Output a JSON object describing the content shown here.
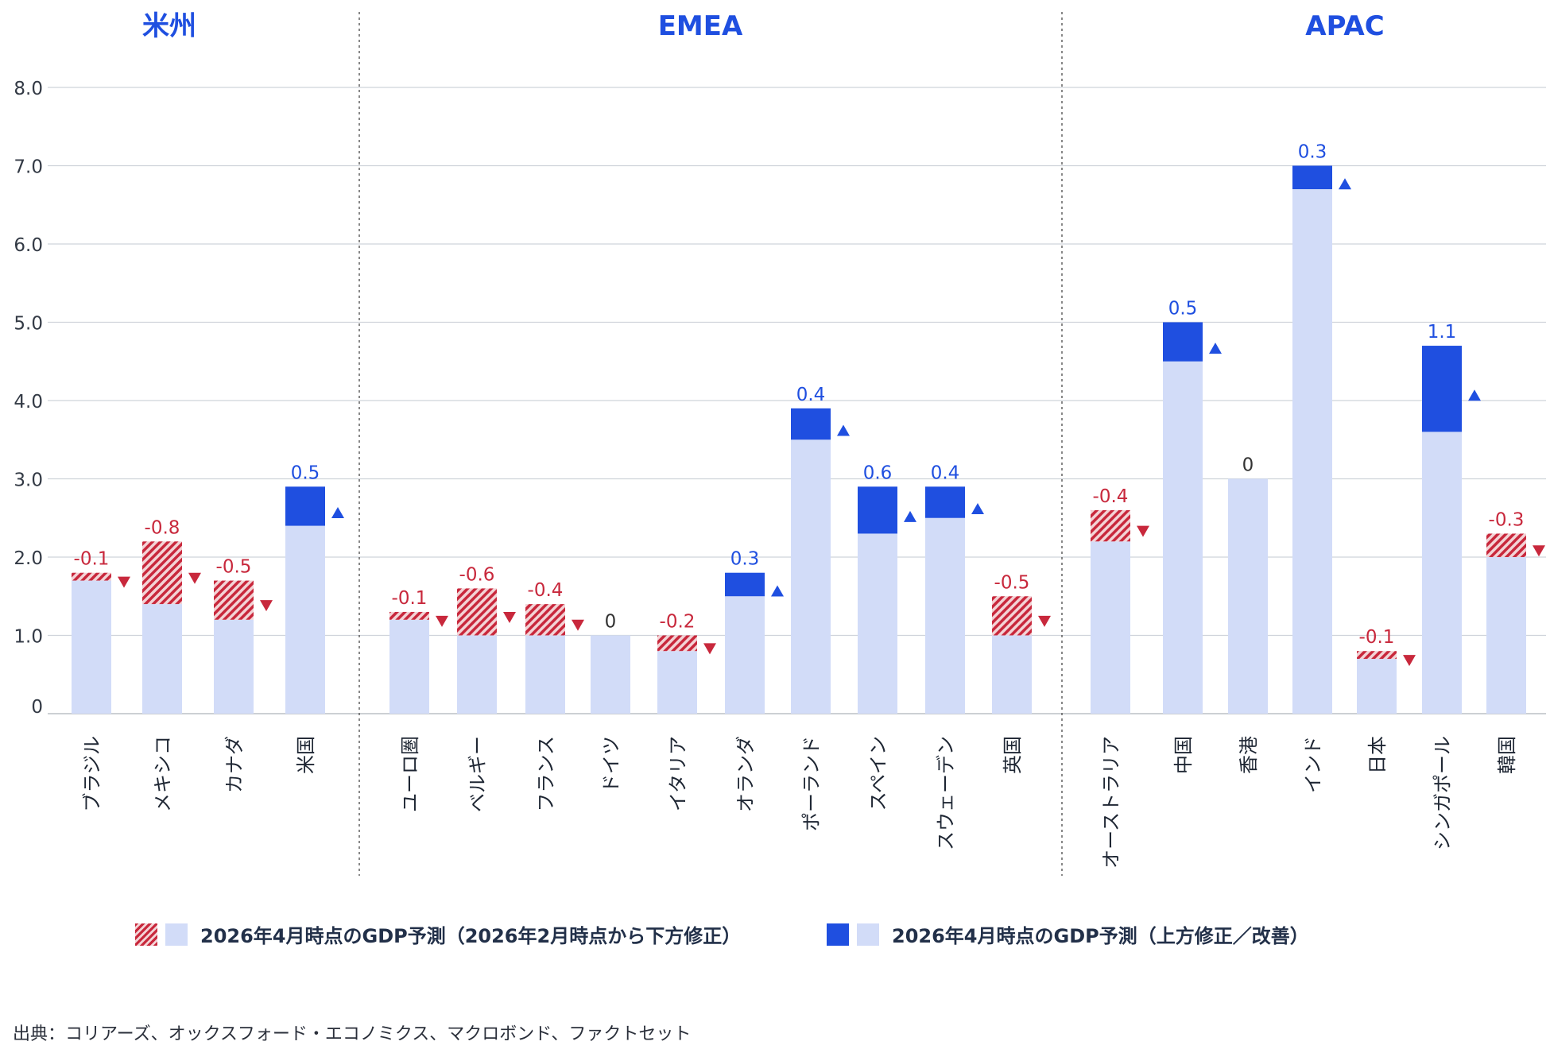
{
  "chart_data": {
    "type": "bar",
    "stacked": true,
    "ylim": [
      0,
      8
    ],
    "yticks": [
      "0",
      "1.0",
      "2.0",
      "3.0",
      "4.0",
      "5.0",
      "6.0",
      "7.0",
      "8.0"
    ],
    "grid": true,
    "groups": [
      {
        "name": "米州",
        "bars": [
          {
            "label": "ブラジル",
            "base": 1.7,
            "revision": -0.1,
            "display": "-0.1"
          },
          {
            "label": "メキシコ",
            "base": 1.4,
            "revision": -0.8,
            "display": "-0.8"
          },
          {
            "label": "カナダ",
            "base": 1.2,
            "revision": -0.5,
            "display": "-0.5"
          },
          {
            "label": "米国",
            "base": 2.4,
            "revision": 0.5,
            "display": "0.5"
          }
        ]
      },
      {
        "name": "EMEA",
        "bars": [
          {
            "label": "ユーロ圏",
            "base": 1.2,
            "revision": -0.1,
            "display": "-0.1"
          },
          {
            "label": "ベルギー",
            "base": 1.0,
            "revision": -0.6,
            "display": "-0.6"
          },
          {
            "label": "フランス",
            "base": 1.0,
            "revision": -0.4,
            "display": "-0.4"
          },
          {
            "label": "ドイツ",
            "base": 1.0,
            "revision": 0,
            "display": "0"
          },
          {
            "label": "イタリア",
            "base": 0.8,
            "revision": -0.2,
            "display": "-0.2"
          },
          {
            "label": "オランダ",
            "base": 1.5,
            "revision": 0.3,
            "display": "0.3"
          },
          {
            "label": "ポーランド",
            "base": 3.5,
            "revision": 0.4,
            "display": "0.4"
          },
          {
            "label": "スペイン",
            "base": 2.3,
            "revision": 0.6,
            "display": "0.6"
          },
          {
            "label": "スウェーデン",
            "base": 2.5,
            "revision": 0.4,
            "display": "0.4"
          },
          {
            "label": "英国",
            "base": 1.0,
            "revision": -0.5,
            "display": "-0.5"
          }
        ]
      },
      {
        "name": "APAC",
        "bars": [
          {
            "label": "オーストラリア",
            "base": 2.2,
            "revision": -0.4,
            "display": "-0.4"
          },
          {
            "label": "中国",
            "base": 4.5,
            "revision": 0.5,
            "display": "0.5"
          },
          {
            "label": "香港",
            "base": 3.0,
            "revision": 0,
            "display": "0"
          },
          {
            "label": "インド",
            "base": 6.7,
            "revision": 0.3,
            "display": "0.3"
          },
          {
            "label": "日本",
            "base": 0.7,
            "revision": -0.1,
            "display": "-0.1"
          },
          {
            "label": "シンガポール",
            "base": 3.6,
            "revision": 1.1,
            "display": "1.1"
          },
          {
            "label": "韓国",
            "base": 2.0,
            "revision": -0.3,
            "display": "-0.3"
          }
        ]
      }
    ],
    "legend": [
      {
        "key": "down",
        "label": "2026年4月時点のGDP予測（2026年2月時点から下方修正）"
      },
      {
        "key": "up",
        "label": "2026年4月時点のGDP予測（上方修正／改善）"
      }
    ],
    "legend_position": "bottom",
    "colors": {
      "base": "#d2dcf8",
      "up": "#1f4fe0",
      "down": "#c8283c",
      "down_light": "#f3d3d6",
      "group_title": "#1f4fe0",
      "grid": "#cfd3da",
      "neutral_label": "#333333"
    }
  },
  "source": "出典：コリアーズ、オックスフォード・エコノミクス、マクロボンド、ファクトセット"
}
